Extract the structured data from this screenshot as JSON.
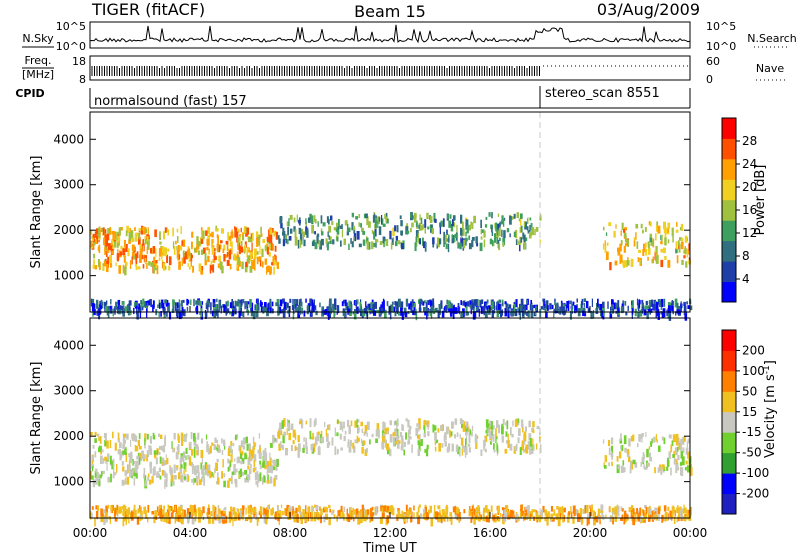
{
  "header": {
    "title": "TIGER (fitACF)",
    "beam": "Beam 15",
    "date": "03/Aug/2009"
  },
  "strips": {
    "nsky_label": "N.Sky",
    "nsky_ticks": [
      "10^5",
      "10^0"
    ],
    "nsearch_label": "N.Search",
    "nsearch_ticks": [
      "10^5",
      "10^0"
    ],
    "freq_label": "Freq.",
    "freq_unit": "[MHz]",
    "freq_ticks": [
      "18",
      "8"
    ],
    "nave_label": "Nave",
    "nave_ticks": [
      "60",
      "0"
    ],
    "cpid_label": "CPID",
    "cpid_modes": [
      {
        "text": "normalsound (fast) 157",
        "start_hour": 0
      },
      {
        "text": "stereo_scan 8551",
        "start_hour": 18
      }
    ]
  },
  "chart_data": [
    {
      "type": "heatmap",
      "title": "",
      "ylabel": "Slant Range [km]",
      "xlabel": "",
      "xlim": [
        0,
        24
      ],
      "ylim": [
        200,
        4600
      ],
      "yticks": [
        "1000",
        "2000",
        "3000",
        "4000"
      ],
      "colorbar_label": "Power [dB]",
      "colorbar_ticks": [
        "4",
        "8",
        "12",
        "16",
        "20",
        "24",
        "28"
      ],
      "colorbar_range": [
        0,
        32
      ],
      "colors": [
        "#0000ff",
        "#1f3fa8",
        "#2f6f7f",
        "#3f9f5f",
        "#a0c040",
        "#f0d020",
        "#ffa000",
        "#ff5000",
        "#ff0000"
      ],
      "features": [
        {
          "name": "main band",
          "hours": [
            0,
            7.5
          ],
          "range_km": [
            1200,
            2100
          ],
          "level_db": 22
        },
        {
          "name": "evening patches",
          "hours": [
            7.5,
            18
          ],
          "range_km": [
            1700,
            2400
          ],
          "level_db": 12
        },
        {
          "name": "far band",
          "hours": [
            20.5,
            24
          ],
          "range_km": [
            1300,
            2200
          ],
          "level_db": 20
        },
        {
          "name": "ground scatter near range",
          "hours": [
            0,
            24
          ],
          "range_km": [
            200,
            500
          ],
          "level_db": 6
        }
      ]
    },
    {
      "type": "heatmap",
      "title": "",
      "ylabel": "Slant Range [km]",
      "xlabel": "Time UT",
      "xlim": [
        0,
        24
      ],
      "ylim": [
        200,
        4600
      ],
      "yticks": [
        "1000",
        "2000",
        "3000",
        "4000"
      ],
      "xticks": [
        "00:00",
        "04:00",
        "08:00",
        "12:00",
        "16:00",
        "20:00",
        "00:00"
      ],
      "colorbar_label": "Velocity [m s",
      "colorbar_exp": "-1",
      "colorbar_unit_end": "]",
      "colorbar_ticks": [
        "200",
        "100",
        "50",
        "15",
        "-15",
        "-50",
        "-100",
        "-200"
      ],
      "colors": [
        "#2020c0",
        "#0000ff",
        "#30a030",
        "#70d030",
        "#c8c8c0",
        "#f0c020",
        "#ff8000",
        "#ff3000",
        "#ff0000"
      ],
      "features": [
        {
          "name": "ground scatter band",
          "hours": [
            0,
            7.5
          ],
          "range_km": [
            1000,
            2100
          ],
          "velocity": 0
        },
        {
          "name": "evening band",
          "hours": [
            7.5,
            18
          ],
          "range_km": [
            1700,
            2400
          ],
          "velocity": 0
        },
        {
          "name": "far band",
          "hours": [
            20.5,
            24
          ],
          "range_km": [
            1300,
            2100
          ],
          "velocity": 0
        },
        {
          "name": "near range flow",
          "hours": [
            0,
            24
          ],
          "range_km": [
            200,
            500
          ],
          "velocity": -40
        }
      ]
    }
  ]
}
